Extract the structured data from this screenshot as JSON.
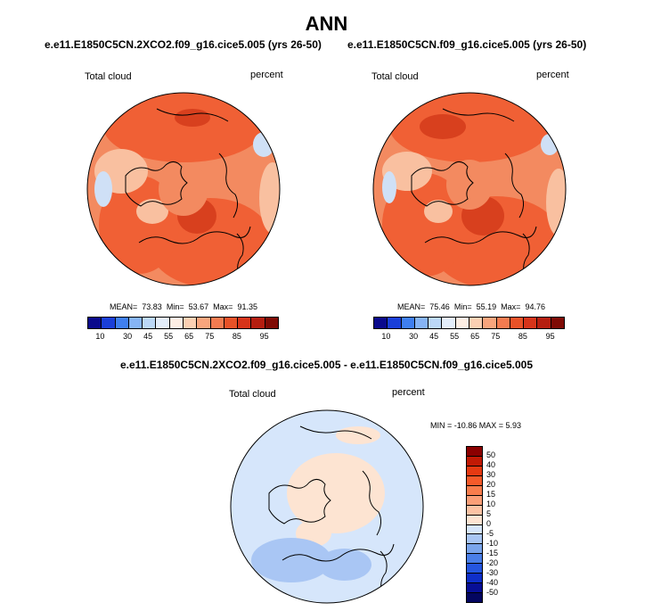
{
  "figure": {
    "title": "ANN",
    "panels": [
      {
        "run": "e.e11.E1850C5CN.2XCO2.f09_g16.cice5.005 (yrs 26-50)",
        "variable": "Total cloud",
        "units": "percent",
        "mean_label": "MEAN=",
        "mean": "73.83",
        "min_label": "Min=",
        "min": "53.67",
        "max_label": "Max=",
        "max": "91.35"
      },
      {
        "run": "e.e11.E1850C5CN.f09_g16.cice5.005 (yrs 26-50)",
        "variable": "Total cloud",
        "units": "percent",
        "mean_label": "MEAN=",
        "mean": "75.46",
        "min_label": "Min=",
        "min": "55.19",
        "max_label": "Max=",
        "max": "94.76"
      }
    ],
    "diff": {
      "title": "e.e11.E1850C5CN.2XCO2.f09_g16.cice5.005 - e.e11.E1850C5CN.f09_g16.cice5.005",
      "variable": "Total cloud",
      "units": "percent",
      "minmax": "MIN = -10.86 MAX =   5.93"
    },
    "abs_colorbar": {
      "labels": [
        "10",
        "30",
        "45",
        "55",
        "65",
        "75",
        "85",
        "95"
      ],
      "colors": [
        "#0a0a8c",
        "#1a3fd8",
        "#3f7ff0",
        "#86b4f5",
        "#bcd8f7",
        "#e4eefb",
        "#fdeee4",
        "#fbd0b3",
        "#f8a57d",
        "#f37b50",
        "#e85228",
        "#d6341a",
        "#b51e10",
        "#7f0b05"
      ]
    },
    "diff_colorbar": {
      "labels": [
        "50",
        "40",
        "30",
        "20",
        "15",
        "10",
        "5",
        "0",
        "-5",
        "-10",
        "-15",
        "-20",
        "-30",
        "-40",
        "-50"
      ],
      "colors": [
        "#8b0000",
        "#c21a05",
        "#e63a12",
        "#f55a2a",
        "#f87d4d",
        "#fa9f78",
        "#fcc3a4",
        "#fde4d2",
        "#d6e6fb",
        "#a9c6f4",
        "#7aa5ec",
        "#4a7fe8",
        "#2556e0",
        "#0f2fc9",
        "#080f96",
        "#040660"
      ]
    },
    "colors": {
      "ocean_high": "#f06035",
      "ocean_mid": "#f38a60",
      "ocean_low": "#f9c0a0",
      "ice_blue": "#cfe0f6",
      "dark_spot": "#d8401e",
      "diff_bg": "#d6e6fb",
      "diff_land": "#fde4d2",
      "diff_deep": "#a9c6f4"
    }
  }
}
